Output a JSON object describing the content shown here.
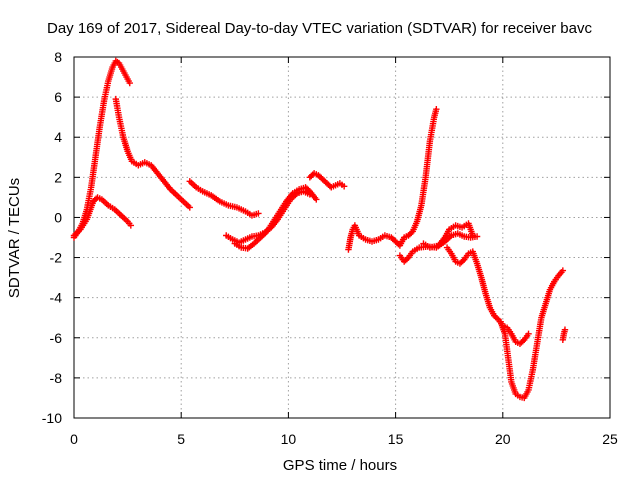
{
  "chart_data": {
    "type": "scatter",
    "title": "Day 169 of 2017, Sidereal Day-to-day VTEC variation (SDTVAR) for receiver bavc",
    "xlabel": "GPS time / hours",
    "ylabel": "SDTVAR / TECUs",
    "xlim": [
      0,
      25
    ],
    "ylim": [
      -10,
      8
    ],
    "xticks": [
      0,
      5,
      10,
      15,
      20,
      25
    ],
    "yticks": [
      -10,
      -8,
      -6,
      -4,
      -2,
      0,
      2,
      4,
      6,
      8
    ],
    "x_tick_labels": [
      "0",
      "5",
      "10",
      "15",
      "20",
      "25"
    ],
    "y_tick_labels": [
      "-10",
      "-8",
      "-6",
      "-4",
      "-2",
      "0",
      "2",
      "4",
      "6",
      "8"
    ],
    "grid": true,
    "marker": "plus",
    "marker_color": "#ff0000",
    "series": [
      {
        "points": [
          [
            0.0,
            -1.0
          ],
          [
            0.2,
            -0.7
          ],
          [
            0.4,
            -0.3
          ],
          [
            0.6,
            0.4
          ],
          [
            0.8,
            1.5
          ],
          [
            1.0,
            3.0
          ],
          [
            1.2,
            4.5
          ],
          [
            1.4,
            5.8
          ],
          [
            1.6,
            6.8
          ],
          [
            1.8,
            7.5
          ],
          [
            1.95,
            7.8
          ],
          [
            2.1,
            7.7
          ],
          [
            2.3,
            7.3
          ],
          [
            2.5,
            6.9
          ],
          [
            2.6,
            6.7
          ]
        ]
      },
      {
        "points": [
          [
            0.0,
            -0.9
          ],
          [
            0.3,
            -0.6
          ],
          [
            0.6,
            -0.1
          ],
          [
            0.9,
            0.8
          ],
          [
            1.1,
            1.0
          ],
          [
            1.3,
            0.9
          ],
          [
            1.6,
            0.6
          ],
          [
            1.9,
            0.4
          ],
          [
            2.2,
            0.1
          ],
          [
            2.5,
            -0.2
          ],
          [
            2.65,
            -0.4
          ]
        ]
      },
      {
        "points": [
          [
            1.95,
            5.9
          ],
          [
            2.1,
            5.0
          ],
          [
            2.3,
            4.0
          ],
          [
            2.5,
            3.3
          ],
          [
            2.7,
            2.8
          ],
          [
            3.0,
            2.6
          ],
          [
            3.3,
            2.75
          ],
          [
            3.6,
            2.6
          ],
          [
            3.9,
            2.2
          ],
          [
            4.2,
            1.8
          ],
          [
            4.5,
            1.4
          ],
          [
            4.8,
            1.1
          ],
          [
            5.1,
            0.8
          ],
          [
            5.4,
            0.5
          ]
        ]
      },
      {
        "points": [
          [
            5.4,
            1.8
          ],
          [
            5.7,
            1.5
          ],
          [
            6.0,
            1.3
          ],
          [
            6.4,
            1.1
          ],
          [
            6.8,
            0.8
          ],
          [
            7.2,
            0.6
          ],
          [
            7.6,
            0.5
          ],
          [
            8.0,
            0.3
          ],
          [
            8.3,
            0.1
          ],
          [
            8.6,
            0.2
          ]
        ]
      },
      {
        "points": [
          [
            7.1,
            -0.9
          ],
          [
            7.4,
            -1.1
          ],
          [
            7.7,
            -1.25
          ],
          [
            8.0,
            -1.1
          ],
          [
            8.3,
            -0.95
          ],
          [
            8.6,
            -0.9
          ],
          [
            8.9,
            -0.75
          ],
          [
            9.2,
            -0.5
          ],
          [
            9.5,
            -0.1
          ],
          [
            9.8,
            0.4
          ],
          [
            10.1,
            0.9
          ],
          [
            10.4,
            1.2
          ],
          [
            10.7,
            1.3
          ],
          [
            11.0,
            1.15
          ]
        ]
      },
      {
        "points": [
          [
            7.5,
            -1.3
          ],
          [
            7.8,
            -1.5
          ],
          [
            8.1,
            -1.55
          ],
          [
            8.4,
            -1.3
          ],
          [
            8.7,
            -1.0
          ],
          [
            9.0,
            -0.7
          ],
          [
            9.3,
            -0.2
          ],
          [
            9.6,
            0.3
          ],
          [
            9.9,
            0.8
          ],
          [
            10.2,
            1.2
          ],
          [
            10.5,
            1.4
          ],
          [
            10.8,
            1.5
          ],
          [
            11.0,
            1.3
          ],
          [
            11.3,
            0.9
          ]
        ]
      },
      {
        "points": [
          [
            11.0,
            2.0
          ],
          [
            11.2,
            2.2
          ],
          [
            11.4,
            2.1
          ],
          [
            11.6,
            1.9
          ],
          [
            11.8,
            1.7
          ],
          [
            12.0,
            1.5
          ],
          [
            12.2,
            1.6
          ],
          [
            12.4,
            1.7
          ],
          [
            12.6,
            1.55
          ]
        ]
      },
      {
        "points": [
          [
            12.8,
            -1.6
          ],
          [
            12.9,
            -1.0
          ],
          [
            13.0,
            -0.6
          ],
          [
            13.1,
            -0.4
          ],
          [
            13.3,
            -0.9
          ],
          [
            13.6,
            -1.1
          ],
          [
            13.9,
            -1.2
          ],
          [
            14.2,
            -1.1
          ],
          [
            14.5,
            -0.9
          ],
          [
            14.8,
            -1.0
          ],
          [
            15.0,
            -1.2
          ],
          [
            15.2,
            -1.4
          ],
          [
            15.4,
            -1.0
          ],
          [
            15.6,
            -0.9
          ],
          [
            15.8,
            -0.7
          ],
          [
            16.0,
            -0.2
          ],
          [
            16.2,
            0.6
          ],
          [
            16.4,
            2.0
          ],
          [
            16.6,
            3.8
          ],
          [
            16.8,
            5.0
          ],
          [
            16.9,
            5.4
          ]
        ]
      },
      {
        "points": [
          [
            15.2,
            -1.9
          ],
          [
            15.4,
            -2.2
          ],
          [
            15.6,
            -2.0
          ],
          [
            15.8,
            -1.7
          ],
          [
            16.1,
            -1.5
          ],
          [
            16.5,
            -1.45
          ],
          [
            16.9,
            -1.5
          ],
          [
            17.3,
            -1.2
          ],
          [
            17.6,
            -0.9
          ],
          [
            17.9,
            -0.8
          ],
          [
            18.2,
            -0.95
          ],
          [
            18.5,
            -1.0
          ],
          [
            18.8,
            -0.95
          ]
        ]
      },
      {
        "points": [
          [
            16.3,
            -1.3
          ],
          [
            16.6,
            -1.5
          ],
          [
            17.0,
            -1.4
          ],
          [
            17.3,
            -1.0
          ],
          [
            17.5,
            -0.6
          ],
          [
            17.8,
            -0.4
          ],
          [
            18.1,
            -0.5
          ],
          [
            18.4,
            -0.3
          ],
          [
            18.6,
            -0.9
          ]
        ]
      },
      {
        "points": [
          [
            17.4,
            -1.5
          ],
          [
            17.6,
            -1.8
          ],
          [
            17.8,
            -2.2
          ],
          [
            18.0,
            -2.3
          ],
          [
            18.2,
            -2.1
          ],
          [
            18.4,
            -1.8
          ],
          [
            18.6,
            -1.7
          ],
          [
            18.8,
            -2.3
          ],
          [
            19.0,
            -3.0
          ],
          [
            19.2,
            -3.8
          ],
          [
            19.4,
            -4.5
          ],
          [
            19.6,
            -4.9
          ],
          [
            19.8,
            -5.1
          ],
          [
            20.0,
            -5.4
          ],
          [
            20.2,
            -5.5
          ],
          [
            20.4,
            -5.8
          ],
          [
            20.6,
            -6.2
          ],
          [
            20.8,
            -6.3
          ],
          [
            21.0,
            -6.1
          ],
          [
            21.2,
            -5.8
          ]
        ]
      },
      {
        "points": [
          [
            19.9,
            -5.2
          ],
          [
            20.1,
            -5.8
          ],
          [
            20.25,
            -7.0
          ],
          [
            20.4,
            -8.2
          ],
          [
            20.6,
            -8.8
          ],
          [
            20.8,
            -8.95
          ],
          [
            21.0,
            -9.0
          ],
          [
            21.2,
            -8.6
          ],
          [
            21.4,
            -7.6
          ],
          [
            21.6,
            -6.3
          ],
          [
            21.8,
            -5.0
          ],
          [
            22.0,
            -4.3
          ],
          [
            22.2,
            -3.6
          ],
          [
            22.4,
            -3.2
          ],
          [
            22.6,
            -2.9
          ],
          [
            22.8,
            -2.65
          ]
        ]
      },
      {
        "points": [
          [
            22.8,
            -6.1
          ],
          [
            22.85,
            -5.8
          ],
          [
            22.9,
            -5.6
          ]
        ]
      }
    ]
  }
}
